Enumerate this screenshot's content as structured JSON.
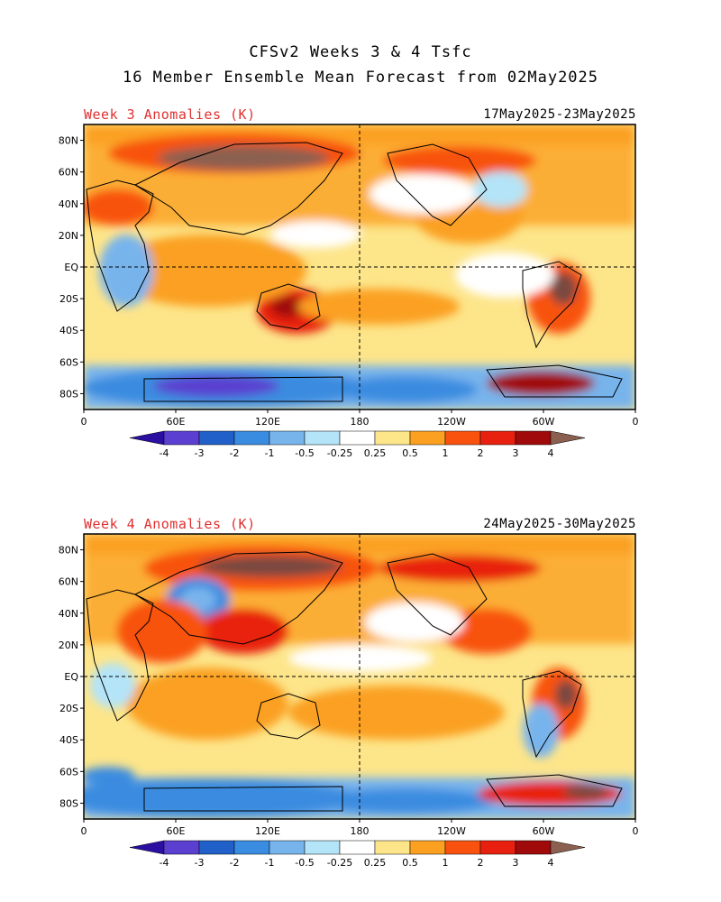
{
  "header": {
    "line1": "CFSv2 Weeks 3 & 4 Tsfc",
    "line2": "16 Member Ensemble Mean Forecast from 02May2025"
  },
  "panels": [
    {
      "title": "Week 3 Anomalies (K)",
      "dates": "17May2025-23May2025"
    },
    {
      "title": "Week 4 Anomalies (K)",
      "dates": "24May2025-30May2025"
    }
  ],
  "map_axes": {
    "lat_labels": [
      "80N",
      "60N",
      "40N",
      "20N",
      "EQ",
      "20S",
      "40S",
      "60S",
      "80S"
    ],
    "lat_values": [
      80,
      60,
      40,
      20,
      0,
      -20,
      -40,
      -60,
      -80
    ],
    "lon_labels": [
      "0",
      "60E",
      "120E",
      "180",
      "120W",
      "60W",
      "0"
    ],
    "lon_values": [
      0,
      60,
      120,
      180,
      240,
      300,
      360
    ],
    "lat_range": [
      -90,
      90
    ],
    "lon_range": [
      0,
      360
    ]
  },
  "colorbar": {
    "levels": [
      -4,
      -3,
      -2,
      -1,
      -0.5,
      -0.25,
      0.25,
      0.5,
      1,
      2,
      3,
      4
    ],
    "tick_labels": [
      "-4",
      "-3",
      "-2",
      "-1",
      "-0.5",
      "-0.25",
      "0.25",
      "0.5",
      "1",
      "2",
      "3",
      "4"
    ],
    "colors": [
      "#2a0fa0",
      "#5a3fd0",
      "#2060c8",
      "#3a8ce0",
      "#78b4ec",
      "#b4e4f8",
      "#ffffff",
      "#fde58a",
      "#fba020",
      "#f8520e",
      "#e82010",
      "#a00a0a",
      "#8c6050"
    ]
  },
  "palette": {
    "ocean_neutral": "#ffffff",
    "warm_light": "#fde58a",
    "warm": "#fba020",
    "hot": "#f8520e",
    "very_hot": "#a00a0a",
    "extreme_hot": "#7a4a40",
    "cool_light": "#b4e4f8",
    "cool": "#78b4ec",
    "cold": "#3a8ce0",
    "very_cold": "#2060c8",
    "extreme_cold": "#5a3fd0"
  }
}
